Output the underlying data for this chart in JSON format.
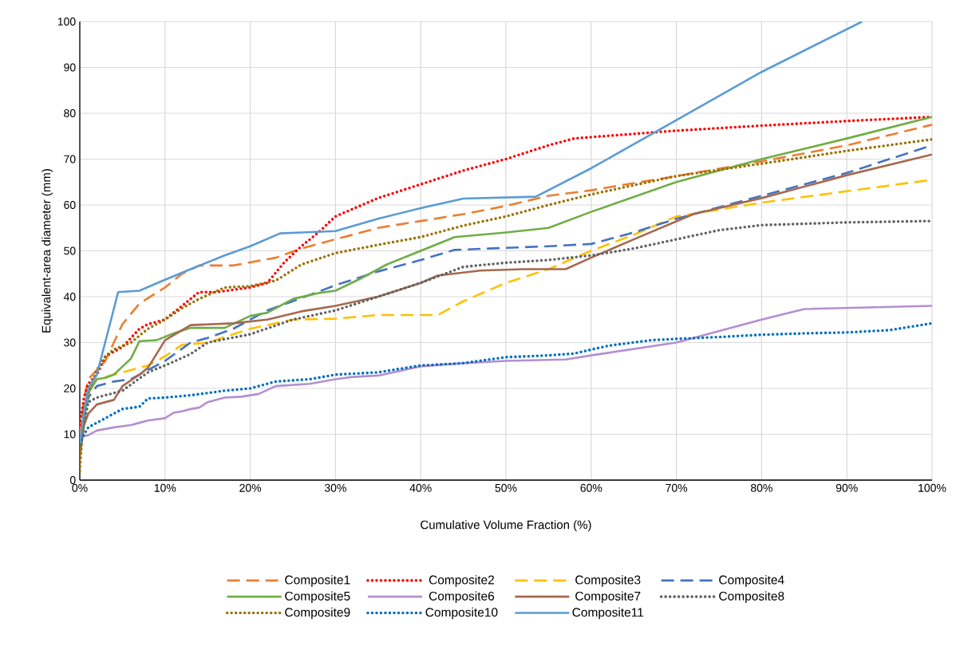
{
  "chart_data": {
    "type": "line",
    "xlabel": "Cumulative Volume Fraction (%)",
    "ylabel": "Equivalent-area diameter (mm)",
    "xlim": [
      0,
      100
    ],
    "ylim": [
      0,
      100
    ],
    "xticks": [
      {
        "value": 0,
        "label": "0%"
      },
      {
        "value": 10,
        "label": "10%"
      },
      {
        "value": 20,
        "label": "20%"
      },
      {
        "value": 30,
        "label": "30%"
      },
      {
        "value": 40,
        "label": "40%"
      },
      {
        "value": 50,
        "label": "50%"
      },
      {
        "value": 60,
        "label": "60%"
      },
      {
        "value": 70,
        "label": "70%"
      },
      {
        "value": 80,
        "label": "80%"
      },
      {
        "value": 90,
        "label": "90%"
      },
      {
        "value": 100,
        "label": "100%"
      }
    ],
    "yticks": [
      0,
      10,
      20,
      30,
      40,
      50,
      60,
      70,
      80,
      90,
      100
    ],
    "grid": true,
    "legend": "bottom",
    "series": [
      {
        "name": "Composite1",
        "color": "#ed7d31",
        "line_style": "dashed",
        "x": [
          0,
          0.5,
          1,
          3,
          5,
          7,
          10,
          12,
          14,
          18,
          23,
          26,
          30,
          35,
          40,
          45,
          50,
          55,
          60,
          70,
          80,
          90,
          100
        ],
        "values": [
          10,
          18,
          22,
          26,
          34,
          38.5,
          42,
          45,
          46.8,
          46.8,
          48.5,
          50.5,
          52.5,
          55,
          56.5,
          58,
          59.8,
          62,
          63.2,
          66.3,
          69.5,
          73,
          77.5
        ]
      },
      {
        "name": "Composite2",
        "color": "#ff0000",
        "line_style": "dotted",
        "x": [
          0,
          0.5,
          1,
          2,
          3,
          4,
          5,
          7,
          8,
          10,
          12,
          14,
          16,
          18,
          20,
          22,
          24,
          26,
          28,
          30,
          35,
          40,
          45,
          50,
          55,
          58,
          60,
          70,
          80,
          90,
          100
        ],
        "values": [
          12,
          18,
          21,
          23,
          27,
          28,
          29,
          33,
          34,
          35,
          38,
          41,
          41,
          41.5,
          42,
          43,
          47.5,
          51,
          54,
          57.5,
          61.5,
          64.5,
          67.5,
          70,
          73,
          74.5,
          74.8,
          76.2,
          77.3,
          78.3,
          79.2
        ]
      },
      {
        "name": "Composite3",
        "color": "#ffc000",
        "line_style": "dashed",
        "x": [
          0,
          1,
          2,
          4,
          6,
          8,
          10,
          12,
          15,
          20,
          25,
          30,
          35,
          42,
          45,
          50,
          55,
          60,
          65,
          70,
          75,
          80,
          90,
          100
        ],
        "values": [
          8,
          20,
          22,
          23,
          24,
          25,
          27,
          29.5,
          30,
          33,
          35,
          35.2,
          36,
          36,
          39,
          43,
          46,
          50,
          53.5,
          57.5,
          59,
          60.5,
          63,
          65.5
        ]
      },
      {
        "name": "Composite4",
        "color": "#4472c4",
        "line_style": "dashed",
        "x": [
          0,
          1,
          2,
          4,
          6,
          8,
          10,
          13,
          15,
          18,
          22,
          25,
          30,
          35,
          40,
          44,
          48,
          55,
          60,
          65,
          70,
          75,
          80,
          90,
          100
        ],
        "values": [
          8,
          18,
          20.5,
          21.5,
          22,
          24,
          26,
          30,
          31,
          33,
          37,
          39,
          42.5,
          45.5,
          48,
          50.2,
          50.5,
          51,
          51.5,
          54,
          57,
          59.5,
          62,
          67,
          73
        ]
      },
      {
        "name": "Composite5",
        "color": "#70ad47",
        "line_style": "solid",
        "x": [
          0,
          1,
          2,
          3,
          4,
          6,
          7,
          9,
          11,
          13,
          17,
          20,
          22,
          25,
          28,
          30,
          33,
          36,
          40,
          44,
          50,
          55,
          60,
          70,
          80,
          90,
          100
        ],
        "values": [
          8,
          19,
          22,
          22.3,
          23,
          26.5,
          30.3,
          30.5,
          32,
          33.2,
          33.2,
          35.8,
          36.5,
          39.5,
          40.8,
          41.3,
          44,
          47,
          50,
          53,
          54,
          55,
          58.5,
          65,
          70,
          74.5,
          79.2
        ]
      },
      {
        "name": "Composite6",
        "color": "#b48fd0",
        "line_style": "solid",
        "x": [
          0.3,
          1,
          2,
          4,
          6,
          7,
          8,
          10,
          11,
          12,
          13,
          14,
          15,
          17,
          19,
          21,
          23,
          27,
          30,
          32,
          35,
          40,
          45,
          50,
          57,
          60,
          70,
          75,
          80,
          85,
          100
        ],
        "values": [
          9.5,
          9.8,
          10.8,
          11.5,
          12,
          12.5,
          13,
          13.5,
          14.7,
          15,
          15.5,
          15.8,
          17,
          18,
          18.2,
          18.8,
          20.5,
          21,
          22,
          22.5,
          22.8,
          24.8,
          25.5,
          26,
          26.3,
          27.2,
          30,
          32.5,
          35,
          37.3,
          38
        ]
      },
      {
        "name": "Composite7",
        "color": "#a5694f",
        "line_style": "solid",
        "x": [
          0,
          0.5,
          1,
          2,
          3,
          4,
          5,
          7,
          8,
          10,
          13,
          18,
          22,
          26,
          30,
          35,
          40,
          42,
          47,
          52,
          57,
          60,
          65,
          72,
          80,
          90,
          100
        ],
        "values": [
          5,
          12,
          14.5,
          16.5,
          17,
          17.5,
          20.5,
          23,
          24.5,
          30.5,
          33.8,
          34.2,
          35,
          36.8,
          38,
          40,
          43,
          44.6,
          45.7,
          46,
          46,
          48.5,
          52.5,
          58,
          61.5,
          66.5,
          71
        ]
      },
      {
        "name": "Composite8",
        "color": "#636363",
        "line_style": "dotted",
        "x": [
          0,
          1,
          2,
          3,
          5,
          8,
          10,
          13,
          15,
          20,
          25,
          30,
          35,
          40,
          45,
          50,
          55,
          60,
          65,
          70,
          75,
          80,
          90,
          100
        ],
        "values": [
          8,
          17,
          18,
          18.5,
          19.5,
          23.5,
          25,
          27.5,
          30,
          31.8,
          35,
          37,
          40,
          43,
          46.5,
          47.4,
          48,
          49,
          50.5,
          52.5,
          54.5,
          55.6,
          56.2,
          56.5
        ]
      },
      {
        "name": "Composite9",
        "color": "#997300",
        "line_style": "dotted",
        "x": [
          0,
          0.5,
          1,
          2,
          3,
          4,
          6,
          8,
          10,
          12,
          14,
          17,
          20,
          23,
          26,
          30,
          35,
          40,
          45,
          50,
          55,
          60,
          70,
          80,
          90,
          100
        ],
        "values": [
          2,
          16,
          19,
          24,
          27,
          28.5,
          30,
          33,
          35,
          37.5,
          39.5,
          42,
          42.3,
          43.5,
          47,
          49.5,
          51.3,
          53,
          55.5,
          57.5,
          60,
          62.3,
          66.3,
          69,
          71.8,
          74.3
        ]
      },
      {
        "name": "Composite10",
        "color": "#0070c0",
        "line_style": "dotted",
        "x": [
          0,
          0.5,
          1,
          2,
          3,
          5,
          7,
          8,
          10,
          13,
          17,
          20,
          23,
          27,
          30,
          35,
          40,
          45,
          50,
          55,
          58,
          62,
          67,
          70,
          75,
          80,
          85,
          90,
          95,
          100
        ],
        "values": [
          8,
          10,
          11.5,
          12.5,
          13.5,
          15.5,
          16,
          17.8,
          18,
          18.5,
          19.5,
          20,
          21.5,
          22,
          23,
          23.5,
          25,
          25.5,
          26.8,
          27.2,
          27.6,
          29.3,
          30.5,
          30.8,
          31.2,
          31.7,
          32,
          32.2,
          32.7,
          34.2
        ]
      },
      {
        "name": "Composite11",
        "color": "#5b9bd5",
        "line_style": "solid",
        "x": [
          0,
          0.5,
          1,
          2,
          4.5,
          7,
          10,
          13,
          17,
          20,
          23.5,
          26,
          30,
          35,
          40,
          45,
          53.5,
          60,
          70,
          80,
          91.8
        ],
        "values": [
          8,
          15,
          20,
          23,
          41,
          41.3,
          43.7,
          46,
          49,
          51,
          53.8,
          54,
          54.3,
          57,
          59.3,
          61.4,
          61.8,
          68,
          78.5,
          89,
          100
        ]
      }
    ]
  }
}
